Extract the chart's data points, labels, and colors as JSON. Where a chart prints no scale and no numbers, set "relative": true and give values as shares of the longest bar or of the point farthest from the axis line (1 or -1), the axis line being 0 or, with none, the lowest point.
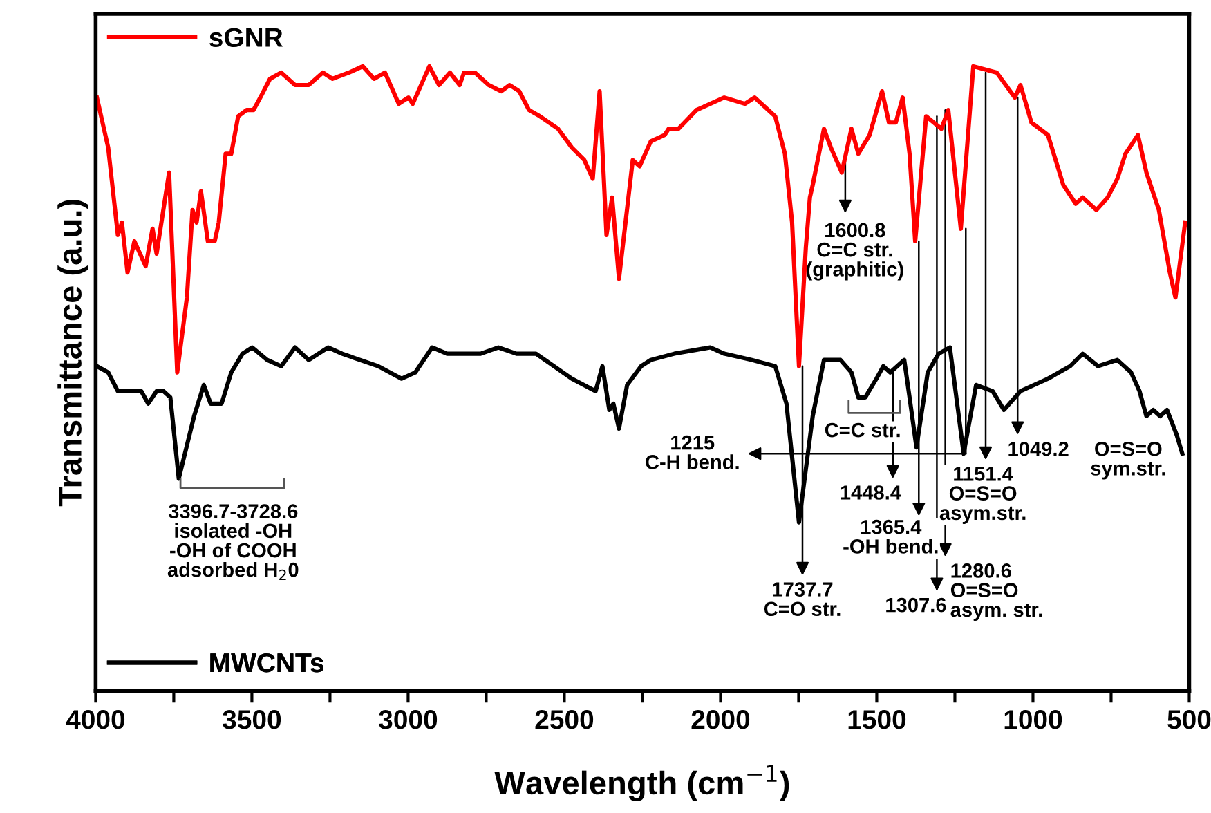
{
  "chart_data": {
    "type": "line",
    "relative": true,
    "xlabel": "Wavelength (cm$^{−1}$)",
    "ylabel": "Transmittance (a.u.)",
    "xlim": [
      4000,
      500
    ],
    "xticks": [
      4000,
      {
        "value": 3750,
        "label": null
      },
      3500,
      {
        "value": 3250,
        "label": null
      },
      3000,
      {
        "value": 2750,
        "label": null
      },
      2500,
      {
        "value": 2250,
        "label": null
      },
      2000,
      {
        "value": 1750,
        "label": null
      },
      1500,
      {
        "value": 1250,
        "label": null
      },
      1000,
      {
        "value": 750,
        "label": null
      },
      500
    ],
    "tick_labels": "x",
    "grid": false,
    "legend": "left",
    "marker": "none",
    "line_style": "solid",
    "series": [
      {
        "name": "sGNR",
        "color": "#ff0000",
        "x": [
          3996,
          3960,
          3929,
          3916,
          3898,
          3876,
          3840,
          3818,
          3805,
          3765,
          3739,
          3708,
          3690,
          3677,
          3663,
          3641,
          3619,
          3606,
          3584,
          3566,
          3544,
          3517,
          3495,
          3473,
          3442,
          3406,
          3362,
          3318,
          3273,
          3242,
          3189,
          3145,
          3109,
          3074,
          3030,
          2999,
          2985,
          2932,
          2901,
          2866,
          2835,
          2821,
          2786,
          2742,
          2702,
          2675,
          2644,
          2613,
          2578,
          2520,
          2476,
          2436,
          2409,
          2387,
          2365,
          2347,
          2325,
          2281,
          2259,
          2223,
          2179,
          2166,
          2135,
          2077,
          1988,
          1922,
          1891,
          1825,
          1794,
          1771,
          1749,
          1727,
          1714,
          1705,
          1669,
          1647,
          1612,
          1581,
          1559,
          1523,
          1483,
          1461,
          1439,
          1417,
          1395,
          1377,
          1342,
          1293,
          1271,
          1231,
          1191,
          1116,
          1058,
          1040,
          1005,
          952,
          903,
          863,
          841,
          797,
          761,
          730,
          704,
          664,
          637,
          597,
          562,
          544,
          513
        ],
        "values": [
          0.95,
          0.87,
          0.73,
          0.75,
          0.67,
          0.72,
          0.68,
          0.74,
          0.7,
          0.83,
          0.51,
          0.63,
          0.77,
          0.75,
          0.8,
          0.72,
          0.72,
          0.75,
          0.86,
          0.86,
          0.92,
          0.93,
          0.93,
          0.95,
          0.98,
          0.99,
          0.97,
          0.97,
          0.99,
          0.98,
          0.99,
          1.0,
          0.98,
          0.99,
          0.94,
          0.95,
          0.94,
          1.0,
          0.97,
          0.99,
          0.97,
          0.99,
          0.99,
          0.97,
          0.96,
          0.97,
          0.96,
          0.93,
          0.92,
          0.9,
          0.87,
          0.85,
          0.82,
          0.96,
          0.73,
          0.79,
          0.66,
          0.85,
          0.84,
          0.88,
          0.89,
          0.9,
          0.9,
          0.93,
          0.95,
          0.94,
          0.95,
          0.92,
          0.86,
          0.75,
          0.52,
          0.71,
          0.79,
          0.81,
          0.9,
          0.87,
          0.83,
          0.9,
          0.86,
          0.89,
          0.96,
          0.91,
          0.91,
          0.95,
          0.86,
          0.72,
          0.92,
          0.9,
          0.93,
          0.74,
          1.0,
          0.99,
          0.95,
          0.97,
          0.91,
          0.89,
          0.81,
          0.78,
          0.79,
          0.77,
          0.79,
          0.82,
          0.86,
          0.89,
          0.83,
          0.77,
          0.67,
          0.63,
          0.75
        ]
      },
      {
        "name": "MWCNTs",
        "color": "#000000",
        "x": [
          3996,
          3960,
          3929,
          3894,
          3854,
          3832,
          3805,
          3783,
          3761,
          3734,
          3685,
          3654,
          3632,
          3597,
          3566,
          3530,
          3499,
          3451,
          3406,
          3362,
          3318,
          3256,
          3211,
          3154,
          3096,
          3021,
          2977,
          2923,
          2875,
          2830,
          2768,
          2711,
          2653,
          2591,
          2533,
          2476,
          2400,
          2378,
          2356,
          2343,
          2325,
          2299,
          2254,
          2223,
          2148,
          2033,
          1988,
          1900,
          1825,
          1789,
          1749,
          1705,
          1669,
          1616,
          1581,
          1559,
          1537,
          1501,
          1479,
          1457,
          1412,
          1395,
          1373,
          1337,
          1302,
          1266,
          1240,
          1222,
          1182,
          1129,
          1093,
          1040,
          952,
          881,
          841,
          792,
          730,
          686,
          659,
          637,
          615,
          593,
          571,
          540,
          522
        ],
        "values": [
          0.52,
          0.51,
          0.48,
          0.48,
          0.48,
          0.46,
          0.48,
          0.48,
          0.47,
          0.34,
          0.44,
          0.49,
          0.46,
          0.46,
          0.51,
          0.54,
          0.55,
          0.53,
          0.52,
          0.55,
          0.53,
          0.55,
          0.54,
          0.53,
          0.52,
          0.5,
          0.51,
          0.55,
          0.54,
          0.54,
          0.54,
          0.55,
          0.54,
          0.54,
          0.52,
          0.5,
          0.48,
          0.52,
          0.45,
          0.46,
          0.42,
          0.49,
          0.52,
          0.53,
          0.54,
          0.55,
          0.54,
          0.53,
          0.52,
          0.46,
          0.27,
          0.44,
          0.53,
          0.53,
          0.51,
          0.47,
          0.47,
          0.5,
          0.52,
          0.51,
          0.53,
          0.47,
          0.39,
          0.51,
          0.54,
          0.55,
          0.45,
          0.38,
          0.49,
          0.48,
          0.45,
          0.48,
          0.5,
          0.52,
          0.54,
          0.52,
          0.53,
          0.51,
          0.48,
          0.44,
          0.45,
          0.44,
          0.45,
          0.41,
          0.38
        ]
      }
    ],
    "annotations": [
      {
        "text": "1600.8\nC=C str.\n(graphitic)",
        "x": 1600.8,
        "y": 0.85
      },
      {
        "text": "3396.7-3728.6\nisolated -OH\n-OH of COOH\nadsorbed H$_{2}$0",
        "x": 3728.6,
        "y": 0.34
      },
      {
        "text": "1215\nC-H bend.",
        "x": 1215,
        "y": 0.38
      },
      {
        "text": "1448.4",
        "x": 1448.4,
        "y": 0.51
      },
      "C=C str.",
      {
        "text": "1737.7\nC=O str.",
        "x": 1737.7,
        "y": 0.52
      },
      {
        "text": "1365.4\n-OH bend.",
        "x": 1365.4,
        "y": 0.72
      },
      {
        "text": "1307.6",
        "x": 1307.6,
        "y": 0.92
      },
      {
        "text": "1280.6\nO=S=O\nasym. str.",
        "x": 1280.6,
        "y": 0.93
      },
      {
        "text": "1151.4\nO=S=O\nasym.str.",
        "x": 1151.4,
        "y": 0.99
      },
      {
        "text": "1049.2",
        "x": 1049.2,
        "y": 0.95
      },
      "O=S=O\nsym.str."
    ]
  }
}
